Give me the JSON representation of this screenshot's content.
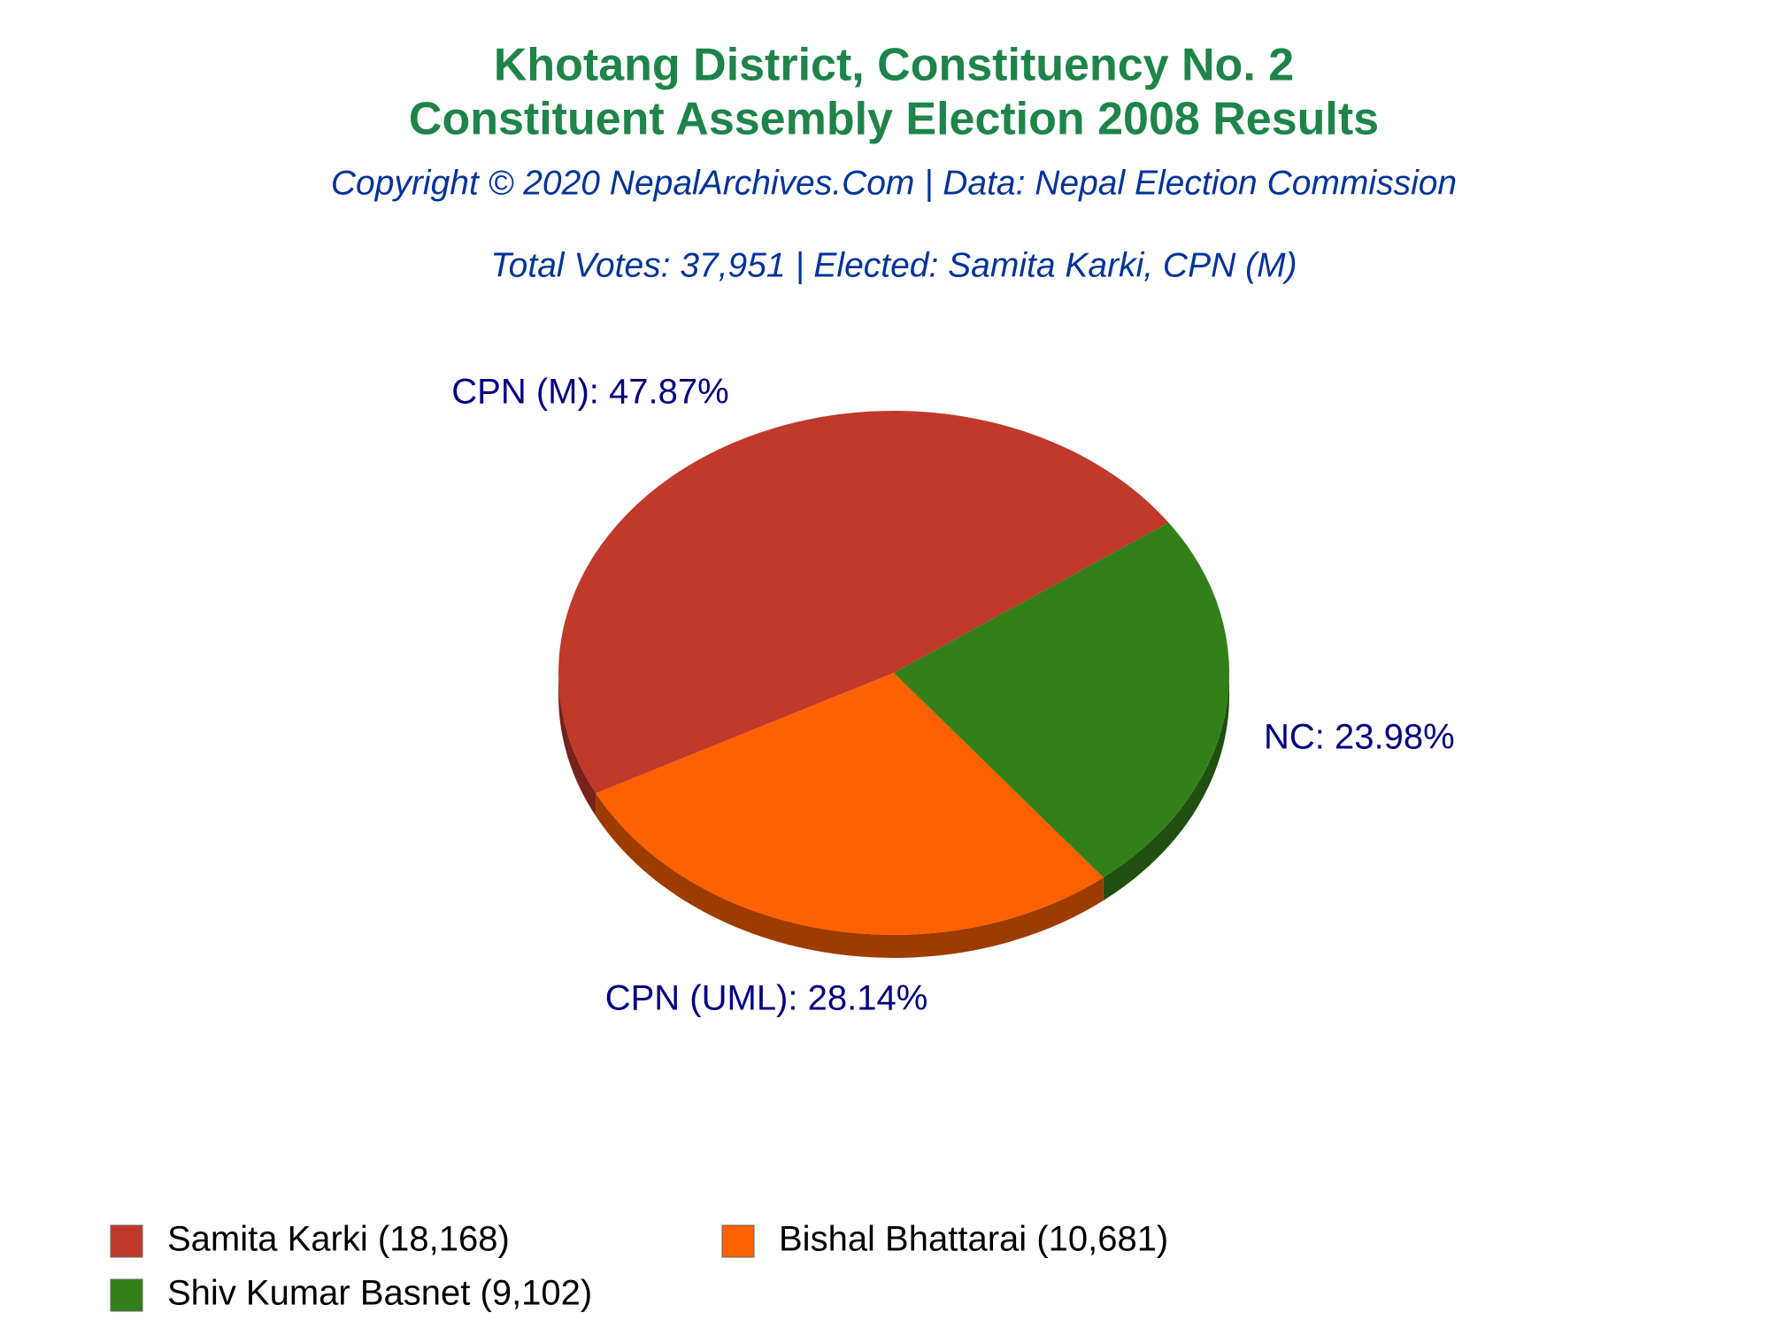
{
  "chart_data": {
    "type": "pie",
    "title": "Khotang District, Constituency No. 2",
    "subtitle": "Constituent Assembly Election 2008 Results",
    "source": "Copyright © 2020 NepalArchives.Com | Data: Nepal Election Commission",
    "summary": "Total Votes: 37,951 | Elected: Samita Karki, CPN (M)",
    "categories": [
      "Samita Karki (18,168)",
      "Bishal Bhattarai (10,681)",
      "Shiv Kumar Basnet (9,102)"
    ],
    "values": [
      47.87,
      28.14,
      23.98
    ],
    "value_labels": [
      "CPN (M): 47.87%",
      "CPN (UML): 28.14%",
      "NC: 23.98%"
    ],
    "colors": [
      "#c0392b",
      "#ff6000",
      "#338018"
    ]
  }
}
